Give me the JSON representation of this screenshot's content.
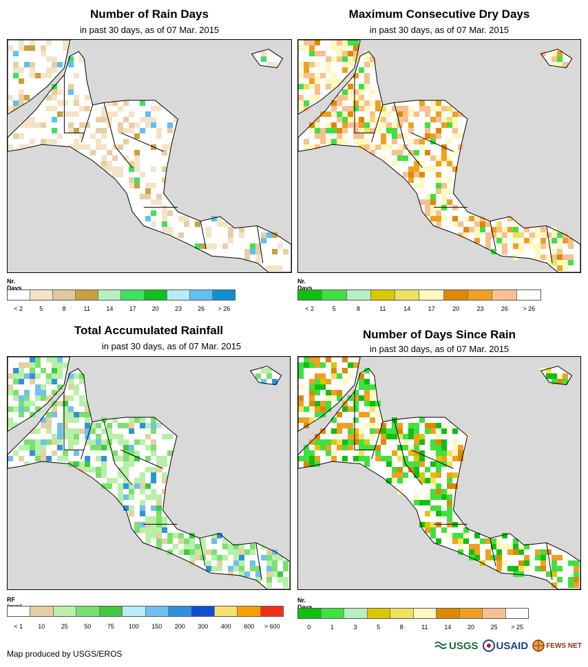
{
  "panels": [
    {
      "title": "Number of Rain Days",
      "subtitle": "in past 30 days, as of 07 Mar. 2015",
      "legend_title": "Nr. Days",
      "legend_colors": [
        "#ffffff",
        "#f5e3c8",
        "#e0c89a",
        "#c8a040",
        "#b8f0c0",
        "#40e060",
        "#10c020",
        "#b8ecfa",
        "#60c0f0",
        "#1090d0"
      ],
      "legend_labels": [
        "< 2",
        "5",
        "8",
        "11",
        "14",
        "17",
        "20",
        "23",
        "26",
        "> 26"
      ],
      "map_palette": [
        "#f5e3c8",
        "#e6cfa3",
        "#c8a040",
        "#40e060",
        "#60c0f0"
      ],
      "map_weights": [
        0.55,
        0.25,
        0.08,
        0.07,
        0.05
      ],
      "fill_density": 0.35
    },
    {
      "title": "Maximum Consecutive Dry Days",
      "subtitle": "in past 30 days, as of 07 Mar. 2015",
      "legend_title": "Nr. Days",
      "legend_colors": [
        "#10c010",
        "#40e040",
        "#b8f0c0",
        "#d8c800",
        "#f0e060",
        "#fff8c0",
        "#e08800",
        "#f0a020",
        "#f8c090",
        "#ffffff"
      ],
      "legend_labels": [
        "< 2",
        "5",
        "8",
        "11",
        "14",
        "17",
        "20",
        "23",
        "26",
        "> 26"
      ],
      "map_palette": [
        "#fff8c0",
        "#f8c090",
        "#f0a020",
        "#e08800",
        "#40e040",
        "#f0e060"
      ],
      "map_weights": [
        0.35,
        0.3,
        0.12,
        0.08,
        0.1,
        0.05
      ],
      "fill_density": 0.55
    },
    {
      "title": "Total Accumulated Rainfall",
      "subtitle": "in past 30 days, as of 07 Mar. 2015",
      "legend_title": "RF (mm)",
      "legend_colors": [
        "#ffffff",
        "#e6cfa3",
        "#b8f0a8",
        "#7ce070",
        "#40c840",
        "#b8ecfa",
        "#70c0f0",
        "#3090e0",
        "#1050d0",
        "#f8e070",
        "#f8a000",
        "#f03010"
      ],
      "legend_labels": [
        "< 1",
        "10",
        "25",
        "50",
        "75",
        "100",
        "150",
        "200",
        "300",
        "400",
        "600",
        "> 600"
      ],
      "map_palette": [
        "#b8f0a8",
        "#7ce070",
        "#e6cfa3",
        "#70c0f0",
        "#3090e0",
        "#40c840"
      ],
      "map_weights": [
        0.5,
        0.2,
        0.12,
        0.08,
        0.05,
        0.05
      ],
      "fill_density": 0.6
    },
    {
      "title": "Number of Days Since Rain",
      "subtitle": "in past 30 days, as of 07 Mar. 2015",
      "legend_title": "Nr. Days",
      "legend_colors": [
        "#10c010",
        "#40e040",
        "#b8f0c0",
        "#d8c800",
        "#f0e060",
        "#fff8c0",
        "#e08800",
        "#f0a020",
        "#f8c090",
        "#ffffff"
      ],
      "legend_labels": [
        "0",
        "1",
        "3",
        "5",
        "8",
        "11",
        "14",
        "20",
        "25",
        "> 25"
      ],
      "map_palette": [
        "#40e040",
        "#10c010",
        "#f0a020",
        "#e08800",
        "#fff8c0",
        "#d8c800",
        "#f0e060"
      ],
      "map_weights": [
        0.35,
        0.15,
        0.18,
        0.1,
        0.1,
        0.07,
        0.05
      ],
      "fill_density": 0.55
    }
  ],
  "footer": "Map produced by USGS/EROS",
  "logos": [
    "USGS",
    "USAID",
    "FEWS NET"
  ]
}
